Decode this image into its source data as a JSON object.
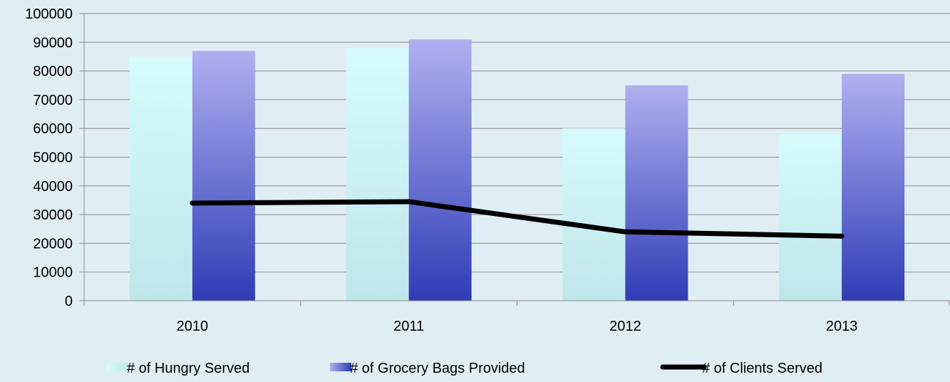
{
  "chart_data": {
    "type": "bar",
    "categories": [
      "2010",
      "2011",
      "2012",
      "2013"
    ],
    "series": [
      {
        "name": "# of Hungry Served",
        "type": "bar",
        "values": [
          85000,
          88000,
          60000,
          58000
        ]
      },
      {
        "name": "# of Grocery Bags Provided",
        "type": "bar",
        "values": [
          87000,
          91000,
          75000,
          79000
        ]
      },
      {
        "name": "# of Clients Served",
        "type": "line",
        "values": [
          34000,
          34500,
          24000,
          22500
        ]
      }
    ],
    "ylim": [
      0,
      100000
    ],
    "yticks": [
      0,
      10000,
      20000,
      30000,
      40000,
      50000,
      60000,
      70000,
      80000,
      90000,
      100000
    ],
    "grid": true,
    "legend": "bottom",
    "colors": {
      "background": "#dfeef3",
      "hungry_top": "#d6fbfd",
      "hungry_bottom": "#bfe6ea",
      "bags_top": "#b0b0f0",
      "bags_bottom": "#2f3cb6",
      "line": "#000000",
      "grid": "#8c8c8c"
    }
  }
}
